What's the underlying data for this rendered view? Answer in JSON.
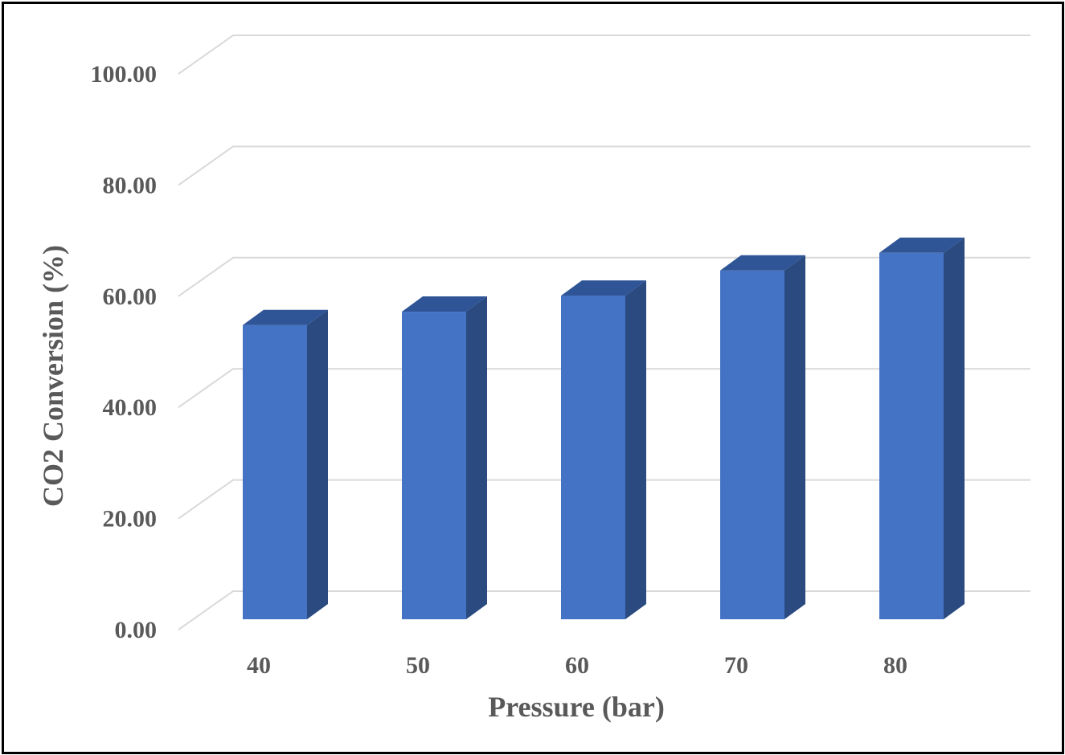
{
  "chart_data": {
    "type": "bar",
    "title": "",
    "xlabel": "Pressure (bar)",
    "ylabel": "CO2 Conversion (%)",
    "categories": [
      "40",
      "50",
      "60",
      "70",
      "80"
    ],
    "values": [
      55.0,
      57.5,
      60.5,
      65.2,
      68.5
    ],
    "ylim": [
      0,
      100
    ],
    "yticks": [
      "0.00",
      "20.00",
      "40.00",
      "60.00",
      "80.00",
      "100.00"
    ],
    "grid": true,
    "legend": "none",
    "style": "3d-column",
    "colors": {
      "bar_front": "#4472C4",
      "bar_top": "#2F5597",
      "bar_side": "#2A4A80",
      "grid": "#D9D9D9",
      "text": "#595959"
    }
  }
}
